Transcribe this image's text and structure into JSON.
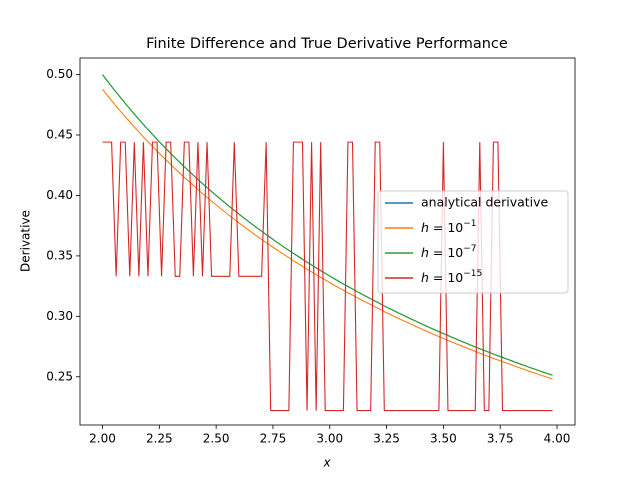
{
  "chart_data": {
    "type": "line",
    "title": "Finite Difference and True Derivative Performance",
    "x_label": "x",
    "y_label": "Derivative",
    "x": [
      2.0,
      2.02,
      2.04,
      2.06,
      2.08,
      2.1,
      2.12,
      2.14,
      2.16,
      2.18,
      2.2,
      2.22,
      2.24,
      2.26,
      2.28,
      2.3,
      2.32,
      2.34,
      2.36,
      2.38,
      2.4,
      2.42,
      2.44,
      2.46,
      2.48,
      2.5,
      2.52,
      2.54,
      2.56,
      2.58,
      2.6,
      2.62,
      2.64,
      2.66,
      2.68,
      2.7,
      2.72,
      2.74,
      2.76,
      2.78,
      2.8,
      2.82,
      2.84,
      2.86,
      2.88,
      2.9,
      2.92,
      2.94,
      2.96,
      2.98,
      3.0,
      3.02,
      3.04,
      3.06,
      3.08,
      3.1,
      3.12,
      3.14,
      3.16,
      3.18,
      3.2,
      3.22,
      3.24,
      3.26,
      3.28,
      3.3,
      3.32,
      3.34,
      3.36,
      3.38,
      3.4,
      3.42,
      3.44,
      3.46,
      3.48,
      3.5,
      3.52,
      3.54,
      3.56,
      3.58,
      3.6,
      3.62,
      3.64,
      3.66,
      3.68,
      3.7,
      3.72,
      3.74,
      3.76,
      3.78,
      3.8,
      3.82,
      3.84,
      3.86,
      3.88,
      3.9,
      3.92,
      3.94,
      3.96,
      3.98
    ],
    "series": [
      {
        "name": "analytical derivative",
        "color": "#1f77b4",
        "values": [
          0.5,
          0.495,
          0.4902,
          0.4854,
          0.4808,
          0.4762,
          0.4717,
          0.4673,
          0.463,
          0.4587,
          0.4545,
          0.4505,
          0.4464,
          0.4425,
          0.4386,
          0.4348,
          0.431,
          0.4274,
          0.4237,
          0.4202,
          0.4167,
          0.4132,
          0.4098,
          0.4065,
          0.4032,
          0.4,
          0.3968,
          0.3937,
          0.3906,
          0.3876,
          0.3846,
          0.3817,
          0.3788,
          0.3759,
          0.3731,
          0.3704,
          0.3676,
          0.365,
          0.3623,
          0.3597,
          0.3571,
          0.3546,
          0.3521,
          0.3497,
          0.3472,
          0.3448,
          0.3425,
          0.3401,
          0.3378,
          0.3356,
          0.3333,
          0.3311,
          0.3289,
          0.3268,
          0.3247,
          0.3226,
          0.3205,
          0.3185,
          0.3165,
          0.3145,
          0.3125,
          0.3106,
          0.3086,
          0.3067,
          0.3049,
          0.303,
          0.3012,
          0.2994,
          0.2976,
          0.2959,
          0.2941,
          0.2924,
          0.2907,
          0.289,
          0.2874,
          0.2857,
          0.2841,
          0.2825,
          0.2809,
          0.2793,
          0.2778,
          0.2762,
          0.2747,
          0.2732,
          0.2717,
          0.2703,
          0.2688,
          0.2674,
          0.266,
          0.2646,
          0.2632,
          0.2618,
          0.2604,
          0.2591,
          0.2577,
          0.2564,
          0.2551,
          0.2538,
          0.2525,
          0.2513
        ]
      },
      {
        "name": "h = 10^{-1}",
        "color": "#ff7f0e",
        "values": [
          0.4879,
          0.4831,
          0.4785,
          0.4739,
          0.4695,
          0.4651,
          0.4609,
          0.4567,
          0.4526,
          0.4485,
          0.4445,
          0.4406,
          0.4367,
          0.433,
          0.4292,
          0.4256,
          0.4219,
          0.4185,
          0.4149,
          0.4116,
          0.4083,
          0.4049,
          0.4016,
          0.3984,
          0.3953,
          0.3922,
          0.3891,
          0.3861,
          0.3831,
          0.3803,
          0.3774,
          0.3746,
          0.3718,
          0.369,
          0.3663,
          0.3637,
          0.361,
          0.3585,
          0.3559,
          0.3534,
          0.3509,
          0.3485,
          0.346,
          0.3437,
          0.3413,
          0.339,
          0.3368,
          0.3344,
          0.3322,
          0.3301,
          0.3279,
          0.3257,
          0.3236,
          0.3216,
          0.3195,
          0.3175,
          0.3155,
          0.3135,
          0.3116,
          0.3097,
          0.3077,
          0.3059,
          0.3039,
          0.3021,
          0.3003,
          0.2985,
          0.2967,
          0.295,
          0.2933,
          0.2916,
          0.2899,
          0.2882,
          0.2866,
          0.2849,
          0.2833,
          0.2817,
          0.2801,
          0.2786,
          0.277,
          0.2755,
          0.274,
          0.2725,
          0.271,
          0.2695,
          0.2681,
          0.2667,
          0.2652,
          0.2639,
          0.2625,
          0.2612,
          0.2598,
          0.2584,
          0.2571,
          0.2558,
          0.2544,
          0.2532,
          0.2519,
          0.2506,
          0.2494,
          0.2482
        ]
      },
      {
        "name": "h = 10^{-7}",
        "color": "#2ca02c",
        "values": [
          0.5,
          0.495,
          0.4902,
          0.4854,
          0.4808,
          0.4762,
          0.4717,
          0.4673,
          0.463,
          0.4587,
          0.4545,
          0.4505,
          0.4464,
          0.4425,
          0.4386,
          0.4348,
          0.431,
          0.4274,
          0.4237,
          0.4202,
          0.4167,
          0.4132,
          0.4098,
          0.4065,
          0.4032,
          0.4,
          0.3968,
          0.3937,
          0.3906,
          0.3876,
          0.3846,
          0.3817,
          0.3788,
          0.3759,
          0.3731,
          0.3704,
          0.3676,
          0.365,
          0.3623,
          0.3597,
          0.3571,
          0.3546,
          0.3521,
          0.3497,
          0.3472,
          0.3448,
          0.3425,
          0.3401,
          0.3378,
          0.3356,
          0.3333,
          0.3311,
          0.3289,
          0.3268,
          0.3247,
          0.3226,
          0.3205,
          0.3185,
          0.3165,
          0.3145,
          0.3125,
          0.3106,
          0.3086,
          0.3067,
          0.3049,
          0.303,
          0.3012,
          0.2994,
          0.2976,
          0.2959,
          0.2941,
          0.2924,
          0.2907,
          0.289,
          0.2874,
          0.2857,
          0.2841,
          0.2825,
          0.2809,
          0.2793,
          0.2778,
          0.2762,
          0.2747,
          0.2732,
          0.2717,
          0.2703,
          0.2688,
          0.2674,
          0.266,
          0.2646,
          0.2632,
          0.2618,
          0.2604,
          0.2591,
          0.2577,
          0.2564,
          0.2551,
          0.2538,
          0.2525,
          0.2513
        ]
      },
      {
        "name": "h = 10^{-15}",
        "color": "#d62728",
        "values": [
          0.4441,
          0.4441,
          0.4441,
          0.3331,
          0.4441,
          0.4441,
          0.3331,
          0.4441,
          0.3331,
          0.4441,
          0.3331,
          0.4441,
          0.4441,
          0.3331,
          0.4441,
          0.4441,
          0.3331,
          0.3331,
          0.4441,
          0.4441,
          0.3331,
          0.4441,
          0.3331,
          0.4441,
          0.3331,
          0.3331,
          0.3331,
          0.3331,
          0.3331,
          0.4441,
          0.3331,
          0.3331,
          0.3331,
          0.3331,
          0.3331,
          0.3331,
          0.4441,
          0.222,
          0.222,
          0.222,
          0.222,
          0.222,
          0.4441,
          0.4441,
          0.4441,
          0.222,
          0.4441,
          0.222,
          0.4441,
          0.222,
          0.222,
          0.222,
          0.222,
          0.222,
          0.4441,
          0.4441,
          0.222,
          0.222,
          0.222,
          0.222,
          0.4441,
          0.4441,
          0.222,
          0.222,
          0.222,
          0.222,
          0.222,
          0.222,
          0.222,
          0.222,
          0.222,
          0.222,
          0.222,
          0.222,
          0.222,
          0.4441,
          0.222,
          0.222,
          0.222,
          0.222,
          0.222,
          0.222,
          0.222,
          0.4441,
          0.222,
          0.222,
          0.4441,
          0.4441,
          0.222,
          0.222,
          0.222,
          0.222,
          0.222,
          0.222,
          0.222,
          0.222,
          0.222,
          0.222,
          0.222,
          0.222
        ]
      }
    ],
    "xlim": [
      1.901,
      4.079
    ],
    "ylim": [
      0.2101,
      0.5137
    ],
    "xticks": [
      {
        "value": 2,
        "label": "2.00"
      },
      2.25,
      {
        "value": 2.5,
        "label": "2.50"
      },
      2.75,
      {
        "value": 3,
        "label": "3.00"
      },
      3.25,
      {
        "value": 3.5,
        "label": "3.50"
      },
      3.75,
      {
        "value": 4,
        "label": "4.00"
      }
    ],
    "yticks": [
      0.25,
      {
        "value": 0.3,
        "label": "0.30"
      },
      0.35,
      {
        "value": 0.4,
        "label": "0.40"
      },
      0.45,
      {
        "value": 0.5,
        "label": "0.50"
      }
    ],
    "grid": false,
    "legend": "right"
  }
}
